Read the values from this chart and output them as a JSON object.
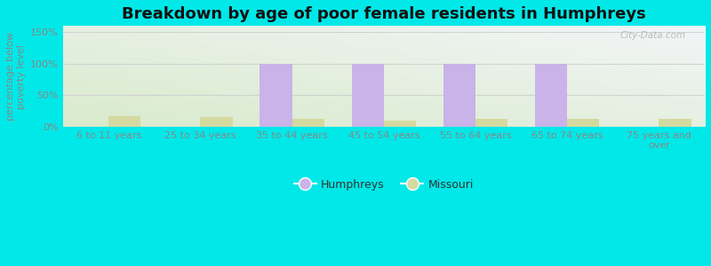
{
  "title": "Breakdown by age of poor female residents in Humphreys",
  "ylabel_line1": "percentage below",
  "ylabel_line2": "poverty level",
  "categories": [
    "6 to 11 years",
    "25 to 34 years",
    "35 to 44 years",
    "45 to 54 years",
    "55 to 64 years",
    "65 to 74 years",
    "75 years and\nover"
  ],
  "humphreys_values": [
    0,
    0,
    100,
    100,
    100,
    100,
    0
  ],
  "missouri_values": [
    17,
    15,
    13,
    10,
    13,
    12,
    13
  ],
  "humphreys_color": "#c9b3e8",
  "missouri_color": "#d4d9a0",
  "outer_bg_color": "#00e8e8",
  "ylim": [
    0,
    160
  ],
  "yticks": [
    0,
    50,
    100,
    150
  ],
  "ytick_labels": [
    "0%",
    "50%",
    "100%",
    "150%"
  ],
  "bar_width": 0.35,
  "title_fontsize": 13,
  "axis_fontsize": 8,
  "tick_fontsize": 8,
  "legend_labels": [
    "Humphreys",
    "Missouri"
  ],
  "watermark": "City-Data.com",
  "tick_color": "#888888",
  "label_color": "#888888"
}
